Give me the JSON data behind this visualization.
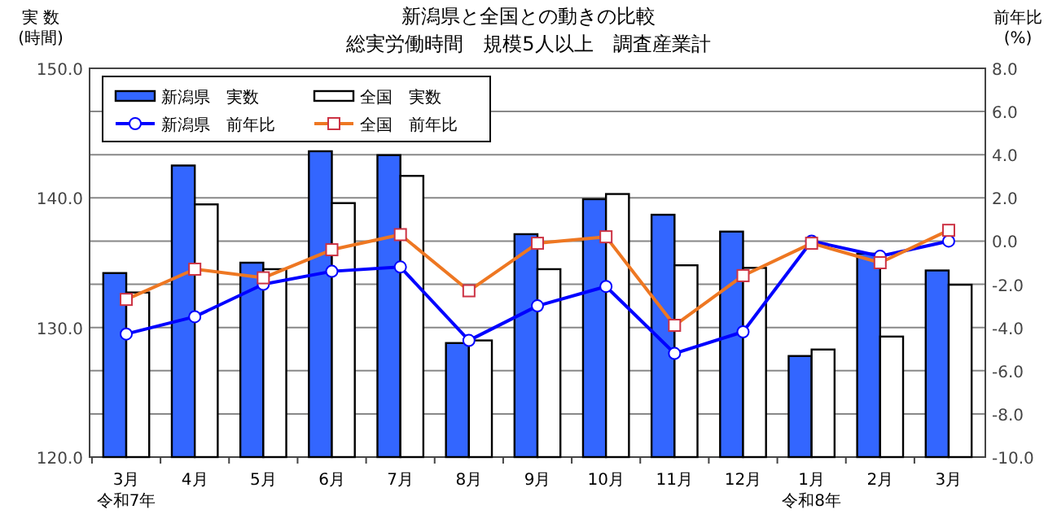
{
  "chart_data": {
    "type": "bar",
    "title": "新潟県と全国との動きの比較",
    "subtitle": "総実労働時間　規模5人以上　調査産業計",
    "ylabel": "実 数\n(時間)",
    "y2label": "前年比\n(%)",
    "categories": [
      "3月",
      "4月",
      "5月",
      "6月",
      "7月",
      "8月",
      "9月",
      "10月",
      "11月",
      "12月",
      "1月",
      "2月",
      "3月"
    ],
    "annotations": [
      "令和7年",
      "令和8年"
    ],
    "series": [
      {
        "name": "新潟県　実数",
        "color": "#3366ff",
        "values": [
          134.2,
          142.5,
          135.0,
          143.6,
          143.3,
          128.8,
          137.2,
          139.9,
          138.7,
          137.4,
          127.8,
          135.7,
          134.4
        ]
      },
      {
        "name": "全国　実数",
        "color": "#ffffff",
        "values": [
          132.7,
          139.5,
          134.5,
          139.6,
          141.7,
          129.0,
          134.5,
          140.3,
          134.8,
          134.6,
          128.3,
          129.3,
          133.3
        ]
      },
      {
        "name": "新潟県　前年比",
        "type": "line",
        "axis": "y2",
        "color": "#0000ff",
        "marker": "circle",
        "values": [
          -4.3,
          -3.5,
          -2.0,
          -1.4,
          -1.2,
          -4.6,
          -3.0,
          -2.1,
          -5.2,
          -4.2,
          0.0,
          -0.7,
          0.0
        ]
      },
      {
        "name": "全国　前年比",
        "type": "line",
        "axis": "y2",
        "color": "#ee7722",
        "marker": "square",
        "values": [
          -2.7,
          -1.3,
          -1.7,
          -0.4,
          0.3,
          -2.3,
          -0.1,
          0.2,
          -3.9,
          -1.6,
          -0.1,
          -1.0,
          0.5
        ]
      }
    ],
    "ylim": [
      120,
      150
    ],
    "yticks": [
      {
        "value": 120,
        "label": "120.0"
      },
      {
        "value": 130,
        "label": "130.0"
      },
      {
        "value": 140,
        "label": "140.0"
      },
      {
        "value": 150,
        "label": "150.0"
      }
    ],
    "y2lim": [
      -10,
      8
    ],
    "y2ticks": [
      {
        "value": -10,
        "label": "-10.0"
      },
      {
        "value": -8,
        "label": "-8.0"
      },
      {
        "value": -6,
        "label": "-6.0"
      },
      {
        "value": -4,
        "label": "-4.0"
      },
      {
        "value": -2,
        "label": "-2.0"
      },
      {
        "value": 0,
        "label": "0.0"
      },
      {
        "value": 2,
        "label": "2.0"
      },
      {
        "value": 4,
        "label": "4.0"
      },
      {
        "value": 6,
        "label": "6.0"
      },
      {
        "value": 8,
        "label": "8.0"
      }
    ],
    "grid": true,
    "legend": "top left"
  }
}
